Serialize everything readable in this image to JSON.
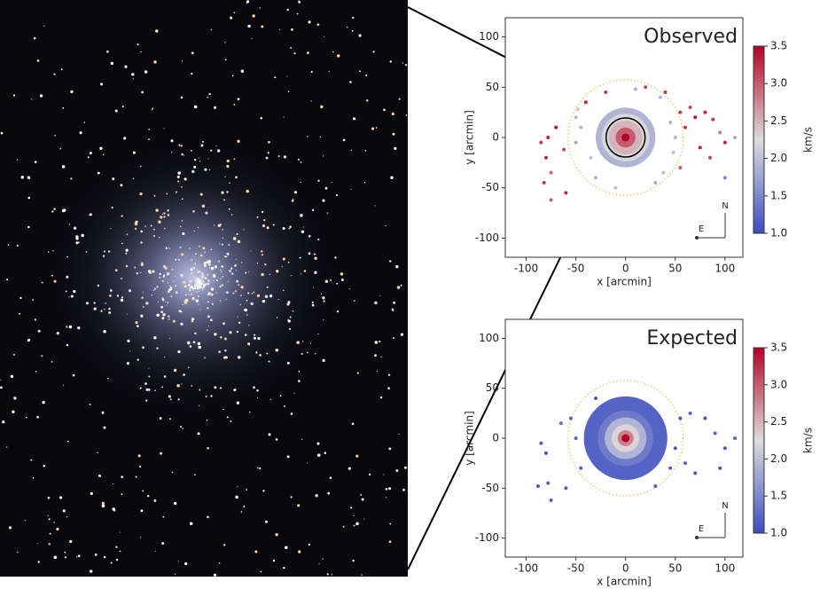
{
  "chart_data": [
    {
      "type": "scatter",
      "title": "Observed",
      "xlabel": "x [arcmin]",
      "ylabel": "y [arcmin]",
      "xlim": [
        -121,
        118
      ],
      "ylim": [
        -119,
        119
      ],
      "xticks": [
        -100,
        -50,
        0,
        50,
        100
      ],
      "yticks": [
        -100,
        -50,
        0,
        50,
        100
      ],
      "x": [
        -78,
        -85,
        -70,
        -62,
        -80,
        -75,
        -82,
        -75,
        -60,
        55,
        70,
        80,
        65,
        88,
        95,
        100,
        60,
        75,
        85,
        55,
        100,
        110,
        40,
        20,
        -40,
        -50,
        -45,
        -35,
        -50,
        45,
        48,
        35,
        -30,
        30,
        10,
        -10,
        50,
        -48,
        38,
        -20
      ],
      "y": [
        0,
        -5,
        10,
        -12,
        -20,
        -35,
        -45,
        -62,
        -55,
        25,
        20,
        25,
        30,
        18,
        5,
        -5,
        10,
        -10,
        -20,
        -30,
        -40,
        0,
        45,
        50,
        35,
        20,
        10,
        -20,
        -5,
        15,
        -15,
        40,
        -40,
        -45,
        48,
        -50,
        0,
        28,
        -35,
        45
      ],
      "values": [
        3.3,
        3.2,
        3.4,
        3.1,
        3.3,
        2.9,
        3.2,
        3.0,
        3.3,
        3.2,
        3.4,
        3.3,
        3.1,
        3.2,
        2.8,
        3.3,
        3.2,
        3.3,
        3.1,
        3.0,
        1.5,
        1.8,
        3.2,
        3.1,
        3.3,
        1.9,
        1.9,
        2.0,
        1.8,
        1.9,
        2.0,
        1.9,
        1.9,
        1.8,
        1.9,
        2.0,
        1.9,
        2.4,
        2.0,
        3.2
      ],
      "core": {
        "r": [
          30,
          24,
          17,
          10,
          4
        ],
        "values": [
          1.9,
          2.2,
          2.5,
          3.0,
          3.5
        ]
      },
      "tidal_radius": 58,
      "clim": [
        1.0,
        3.5
      ],
      "cticks": [
        {
          "value": 1,
          "label": "1.0"
        },
        1.5,
        {
          "value": 2,
          "label": "2.0"
        },
        2.5,
        {
          "value": 3,
          "label": "3.0"
        },
        3.5
      ],
      "colorbar_label": "km/s",
      "colors": [
        "#3b4cc0",
        "#dddddd",
        "#b40426"
      ],
      "compass": {
        "north": "N",
        "east": "E"
      }
    },
    {
      "type": "scatter",
      "title": "Expected",
      "xlabel": "x [arcmin]",
      "ylabel": "y [arcmin]",
      "xlim": [
        -121,
        118
      ],
      "ylim": [
        -119,
        119
      ],
      "xticks": [
        -100,
        -50,
        0,
        50,
        100
      ],
      "yticks": [
        -100,
        -50,
        0,
        50,
        100
      ],
      "x": [
        -85,
        -80,
        -78,
        -88,
        -75,
        -60,
        -65,
        65,
        80,
        90,
        100,
        110,
        95,
        60,
        70,
        -55,
        55,
        -45,
        45,
        50,
        -50,
        30,
        -30
      ],
      "y": [
        -5,
        -15,
        -45,
        -48,
        -62,
        -50,
        15,
        25,
        20,
        5,
        -10,
        0,
        -30,
        -25,
        -35,
        20,
        20,
        -30,
        -30,
        -10,
        0,
        -48,
        40
      ],
      "values": [
        1.2,
        1.1,
        1.2,
        1.1,
        1.2,
        1.1,
        1.3,
        1.2,
        1.1,
        1.2,
        1.1,
        1.2,
        1.1,
        1.2,
        1.1,
        1.2,
        1.1,
        1.2,
        1.2,
        1.1,
        1.2,
        1.2,
        1.1
      ],
      "core": {
        "r": [
          42,
          28,
          21,
          14,
          8,
          4
        ],
        "values": [
          1.2,
          1.4,
          1.9,
          2.3,
          2.8,
          3.5
        ]
      },
      "tidal_radius": 58,
      "clim": [
        1.0,
        3.5
      ],
      "cticks": [
        {
          "value": 1,
          "label": "1.0"
        },
        1.5,
        {
          "value": 2,
          "label": "2.0"
        },
        2.5,
        {
          "value": 3,
          "label": "3.0"
        },
        3.5
      ],
      "colorbar_label": "km/s",
      "colors": [
        "#3b4cc0",
        "#dddddd",
        "#b40426"
      ],
      "compass": {
        "north": "N",
        "east": "E"
      }
    }
  ]
}
